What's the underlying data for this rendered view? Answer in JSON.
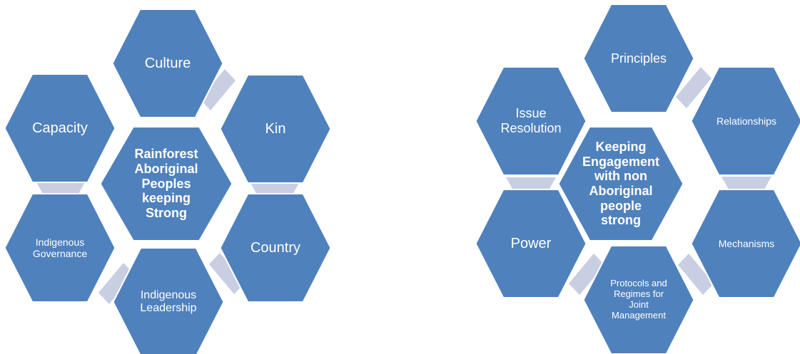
{
  "diagrams": [
    {
      "center": "Rainforest Aboriginal Peoples keeping Strong",
      "nodes": [
        "Culture",
        "Kin",
        "Country",
        "Indigenous Leadership",
        "Indigenous Governance",
        "Capacity"
      ]
    },
    {
      "center": "Keeping Engagement with non Aboriginal people strong",
      "nodes": [
        "Principles",
        "Relationships",
        "Mechanisms",
        "Protocols and Regimes for Joint Management",
        "Power",
        "Issue Resolution"
      ]
    }
  ]
}
